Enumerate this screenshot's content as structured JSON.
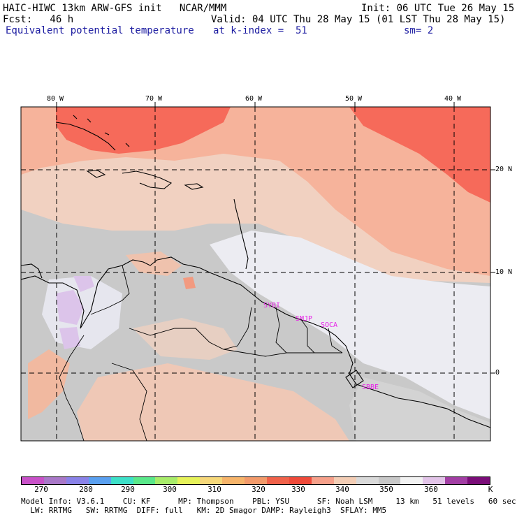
{
  "header": {
    "model": "HAIC-HIWC 13km ARW-GFS init   NCAR/MMM",
    "init": "Init: 06 UTC Tue 26 May 15",
    "fcst": "Fcst:   46 h",
    "valid": "Valid: 04 UTC Thu 28 May 15 (01 LST Thu 28 May 15)",
    "field": "Equivalent potential temperature",
    "level": "at k-index =  51",
    "smoothing": "sm= 2"
  },
  "map": {
    "lon_labels": [
      "80 W",
      "70 W",
      "60 W",
      "50 W",
      "40 W"
    ],
    "lat_labels": [
      "20 N",
      "10 N",
      "0"
    ],
    "stations": [
      "SYBI",
      "SMJP",
      "SOCA",
      "SBBE"
    ],
    "colors": {
      "base": "#c9c9c9",
      "warm_light": "#f1d1c1",
      "warm": "#f6b39b",
      "hot": "#f66a5a",
      "cool_light": "#ececf2",
      "cool_purple": "#dcc4ea",
      "station": "#e81ee8"
    }
  },
  "colorbar": {
    "unit": "K",
    "tick_labels": [
      "270",
      "280",
      "290",
      "300",
      "310",
      "320",
      "330",
      "340",
      "350",
      "360"
    ],
    "colors": [
      "#c851c8",
      "#a978c8",
      "#8a82e8",
      "#5aa0f0",
      "#3de0c8",
      "#5ae88a",
      "#a8ec6a",
      "#e6f25a",
      "#f6d87a",
      "#f6b46a",
      "#f29a6a",
      "#f0624a",
      "#ef4a3a",
      "#f6a08a",
      "#f3cdb5",
      "#d9d9d9",
      "#c8c8c8",
      "#f2f2f2",
      "#e2c4e8",
      "#a23ea4",
      "#7a0d78"
    ]
  },
  "footer": {
    "line1": "Model Info: V3.6.1    CU: KF      MP: Thompson    PBL: YSU      SF: Noah LSM     13 km   51 levels   60 sec",
    "line2": "  LW: RRTMG   SW: RRTMG  DIFF: full   KM: 2D Smagor DAMP: Rayleigh3  SFLAY: MM5"
  }
}
